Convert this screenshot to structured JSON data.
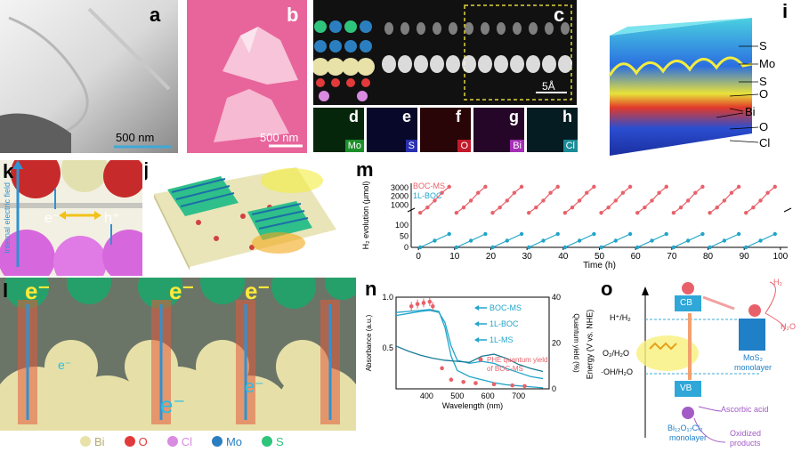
{
  "panels": {
    "a": {
      "label": "a",
      "scale": "500 nm"
    },
    "b": {
      "label": "b",
      "scale": "500 nm"
    },
    "c": {
      "label": "c",
      "scale": "5Å"
    },
    "d": {
      "label": "d",
      "element": "Mo"
    },
    "e": {
      "label": "e",
      "element": "S"
    },
    "f": {
      "label": "f",
      "element": "O"
    },
    "g": {
      "label": "g",
      "element": "Bi"
    },
    "h": {
      "label": "h",
      "element": "Cl"
    },
    "i": {
      "label": "i",
      "layers": [
        "S",
        "Mo",
        "S",
        "O",
        "Bi",
        "O",
        "Cl"
      ]
    },
    "j": {
      "label": "j"
    },
    "k": {
      "label": "k",
      "field_label": "Internal electric field",
      "electron": "e⁻",
      "hole": "h⁺"
    },
    "l": {
      "label": "l",
      "electron": "e⁻"
    },
    "legend": {
      "items": [
        {
          "name": "Bi",
          "color": "#e8e2a8"
        },
        {
          "name": "O",
          "color": "#e23a3a"
        },
        {
          "name": "Cl",
          "color": "#d98be0"
        },
        {
          "name": "Mo",
          "color": "#2b7fc0"
        },
        {
          "name": "S",
          "color": "#2fc47c"
        }
      ]
    },
    "m": {
      "label": "m"
    },
    "n": {
      "label": "n"
    },
    "o": {
      "label": "o",
      "ylabel": "Energy (V vs. NHE)",
      "cb": "CB",
      "vb": "VB",
      "h_label": "H⁺/H₂",
      "o2_label": "O₂/H₂O",
      "oh_label": "·OH/H₂O",
      "h2": "H₂",
      "h2o": "H₂O",
      "mos2": "MoS₂",
      "mos2_sub": "monolayer",
      "boc": "Bi₁₂O₁₇Cl₂",
      "boc_sub": "monolayer",
      "ascorbic": "Ascorbic acid",
      "oxidized1": "Oxidized",
      "oxidized2": "products"
    }
  },
  "chart_data": [
    {
      "type": "line",
      "xlabel": "Time (h)",
      "ylabel": "H₂ evolution (μmol)",
      "xlim": [
        -2,
        102
      ],
      "x_ticks": [
        0,
        10,
        20,
        30,
        40,
        50,
        60,
        70,
        80,
        90,
        100
      ],
      "y_ticks_top": [
        1000,
        2000,
        3000
      ],
      "y_ticks_bottom": [
        0,
        50,
        100
      ],
      "axis_break": true,
      "series": [
        {
          "name": "BOC-MS",
          "color": "#e8616a",
          "cycles": [
            [
              0,
              80
            ],
            [
              2,
              700
            ],
            [
              4,
              1500
            ],
            [
              6,
              2400
            ],
            [
              8,
              3100
            ]
          ]
        },
        {
          "name": "1L-BOC",
          "color": "#21a5c9",
          "cycles": [
            [
              0,
              0
            ],
            [
              4,
              30
            ],
            [
              8,
              60
            ]
          ]
        }
      ],
      "n_cycles": 10,
      "cycle_length": 10
    },
    {
      "type": "line",
      "xlabel": "Wavelength (nm)",
      "ylabel": "Absorbance (a.u.)",
      "ylabel_right": "Quantum yield (%)",
      "xlim": [
        300,
        800
      ],
      "ylim": [
        0.1,
        1.0
      ],
      "ylim_right": [
        0,
        40
      ],
      "x_ticks": [
        400,
        500,
        600,
        700
      ],
      "y_ticks": [
        0.5,
        1.0
      ],
      "y_ticks_right": [
        0,
        20,
        40
      ],
      "series": [
        {
          "name": "BOC-MS",
          "color": "#21a5c9",
          "x": [
            300,
            340,
            380,
            410,
            440,
            460,
            480,
            500,
            540,
            580,
            620,
            660,
            700,
            740,
            780
          ],
          "y": [
            0.82,
            0.84,
            0.86,
            0.87,
            0.85,
            0.75,
            0.52,
            0.38,
            0.35,
            0.37,
            0.35,
            0.3,
            0.26,
            0.22,
            0.2
          ]
        },
        {
          "name": "1L-BOC",
          "color": "#21a5c9",
          "x": [
            300,
            340,
            380,
            410,
            440,
            460,
            480,
            500,
            540,
            580,
            620,
            660,
            700,
            740,
            780
          ],
          "y": [
            0.85,
            0.86,
            0.87,
            0.88,
            0.86,
            0.7,
            0.42,
            0.28,
            0.22,
            0.19,
            0.16,
            0.14,
            0.13,
            0.12,
            0.11
          ]
        },
        {
          "name": "1L-MS",
          "color": "#1a7b96",
          "x": [
            300,
            340,
            380,
            420,
            460,
            500,
            540,
            580,
            620,
            660,
            700,
            740,
            780
          ],
          "y": [
            0.52,
            0.47,
            0.43,
            0.4,
            0.38,
            0.37,
            0.36,
            0.42,
            0.44,
            0.4,
            0.34,
            0.3,
            0.27
          ]
        },
        {
          "name": "PHE quantum yield of BOC-MS",
          "color": "#e8616a",
          "marker": "dot",
          "x": [
            350,
            370,
            390,
            410,
            420,
            450,
            480,
            520,
            560,
            620,
            680,
            720
          ],
          "y_right": [
            36,
            37,
            37.5,
            38,
            36,
            9,
            4,
            3,
            2.5,
            2,
            1.5,
            1.2
          ]
        }
      ]
    }
  ]
}
